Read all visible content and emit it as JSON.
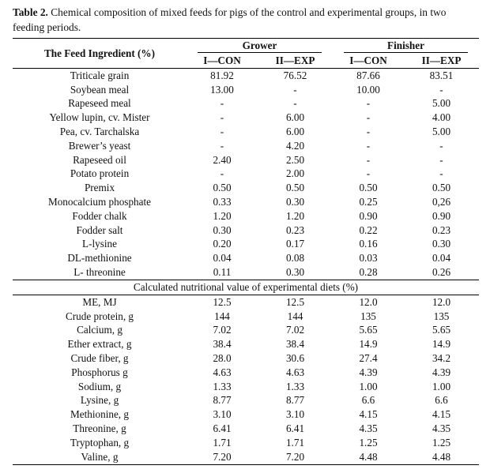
{
  "caption": {
    "label": "Table 2.",
    "text": " Chemical composition of mixed feeds for pigs of the control and experimental groups, in two feeding periods."
  },
  "header": {
    "ingredient_col": "The Feed Ingredient (%)",
    "groups": [
      "Grower",
      "Finisher"
    ],
    "subcols": [
      "I—CON",
      "II—EXP",
      "I—CON",
      "II—EXP"
    ]
  },
  "ingredients": [
    [
      "Triticale grain",
      "81.92",
      "76.52",
      "87.66",
      "83.51"
    ],
    [
      "Soybean meal",
      "13.00",
      "-",
      "10.00",
      "-"
    ],
    [
      "Rapeseed meal",
      "-",
      "-",
      "-",
      "5.00"
    ],
    [
      "Yellow lupin, cv. Mister",
      "-",
      "6.00",
      "-",
      "4.00"
    ],
    [
      "Pea, cv. Tarchalska",
      "-",
      "6.00",
      "-",
      "5.00"
    ],
    [
      "Brewer’s yeast",
      "-",
      "4.20",
      "-",
      "-"
    ],
    [
      "Rapeseed oil",
      "2.40",
      "2.50",
      "-",
      "-"
    ],
    [
      "Potato protein",
      "-",
      "2.00",
      "-",
      "-"
    ],
    [
      "Premix",
      "0.50",
      "0.50",
      "0.50",
      "0.50"
    ],
    [
      "Monocalcium phosphate",
      "0.33",
      "0.30",
      "0.25",
      "0,26"
    ],
    [
      "Fodder chalk",
      "1.20",
      "1.20",
      "0.90",
      "0.90"
    ],
    [
      "Fodder salt",
      "0.30",
      "0.23",
      "0.22",
      "0.23"
    ],
    [
      "L-lysine",
      "0.20",
      "0.17",
      "0.16",
      "0.30"
    ],
    [
      "DL-methionine",
      "0.04",
      "0.08",
      "0.03",
      "0.04"
    ],
    [
      "L- threonine",
      "0.11",
      "0.30",
      "0.28",
      "0.26"
    ]
  ],
  "section_title": "Calculated nutritional value of experimental diets (%)",
  "nutrition": [
    [
      "ME, MJ",
      "12.5",
      "12.5",
      "12.0",
      "12.0"
    ],
    [
      "Crude protein, g",
      "144",
      "144",
      "135",
      "135"
    ],
    [
      "Calcium, g",
      "7.02",
      "7.02",
      "5.65",
      "5.65"
    ],
    [
      "Ether extract, g",
      "38.4",
      "38.4",
      "14.9",
      "14.9"
    ],
    [
      "Crude fiber, g",
      "28.0",
      "30.6",
      "27.4",
      "34.2"
    ],
    [
      "Phosphorus g",
      "4.63",
      "4.63",
      "4.39",
      "4.39"
    ],
    [
      "Sodium, g",
      "1.33",
      "1.33",
      "1.00",
      "1.00"
    ],
    [
      "Lysine, g",
      "8.77",
      "8.77",
      "6.6",
      "6.6"
    ],
    [
      "Methionine, g",
      "3.10",
      "3.10",
      "4.15",
      "4.15"
    ],
    [
      "Threonine, g",
      "6.41",
      "6.41",
      "4.35",
      "4.35"
    ],
    [
      "Tryptophan, g",
      "1.71",
      "1.71",
      "1.25",
      "1.25"
    ],
    [
      "Valine, g",
      "7.20",
      "7.20",
      "4.48",
      "4.48"
    ]
  ]
}
